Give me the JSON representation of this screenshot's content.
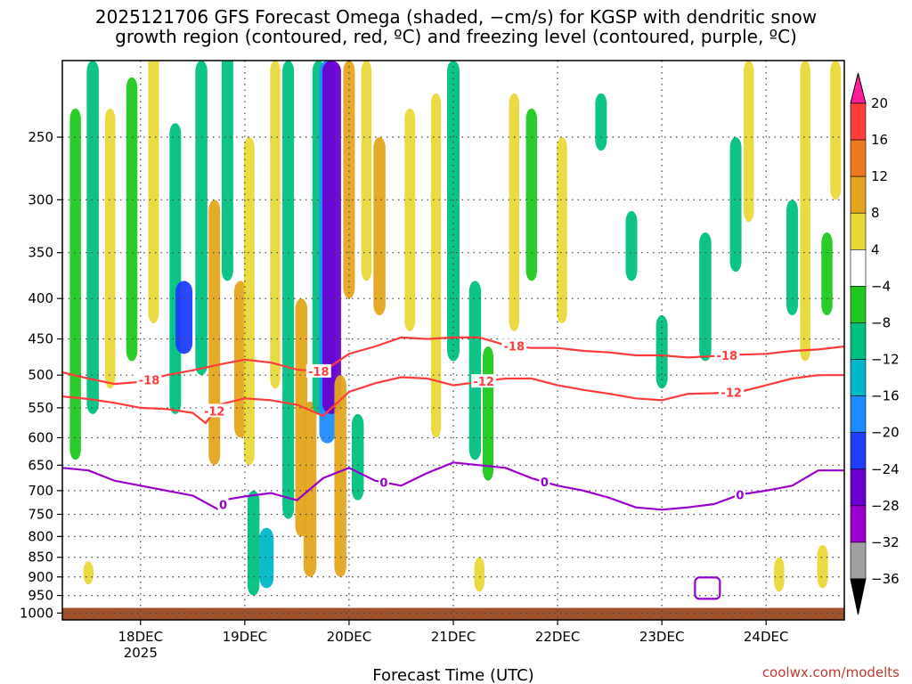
{
  "title": {
    "line1": "2025121706 GFS Forecast Omega (shaded, −cm/s) for KGSP with dendritic snow",
    "line2": "growth region (contoured, red, ºC) and freezing level (contoured, purple, ºC)"
  },
  "credit": "coolwx.com/modelts",
  "colors": {
    "dgz_contour": "#ff3b3b",
    "freezing_contour": "#9900cc",
    "ground": "#a0522d",
    "grid": "#444444"
  },
  "chart_data": {
    "type": "heatmap",
    "xlabel": "Forecast Time (UTC)",
    "ylabel": "",
    "y_axis": {
      "reversed": true,
      "ticks": [
        250,
        300,
        350,
        400,
        450,
        500,
        550,
        600,
        650,
        700,
        750,
        800,
        850,
        900,
        950,
        1000
      ],
      "tick_labels": [
        "250",
        "300",
        "350",
        "400",
        "450",
        "500",
        "550",
        "600",
        "650",
        "700",
        "750",
        "800",
        "850",
        "900",
        "950",
        "1000"
      ]
    },
    "x_axis": {
      "range_hours": [
        0,
        180
      ],
      "ticks": [
        {
          "hour": 18,
          "label": "18DEC",
          "sub": "2025"
        },
        {
          "hour": 42,
          "label": "19DEC",
          "sub": ""
        },
        {
          "hour": 66,
          "label": "20DEC",
          "sub": ""
        },
        {
          "hour": 90,
          "label": "21DEC",
          "sub": ""
        },
        {
          "hour": 114,
          "label": "22DEC",
          "sub": ""
        },
        {
          "hour": 138,
          "label": "23DEC",
          "sub": ""
        },
        {
          "hour": 162,
          "label": "24DEC",
          "sub": ""
        }
      ]
    },
    "grid": true,
    "colorbar": {
      "labels": [
        "20",
        "16",
        "12",
        "8",
        "4",
        "−4",
        "−8",
        "−12",
        "−16",
        "−20",
        "−24",
        "−28",
        "−32",
        "−36"
      ],
      "colors": [
        "#ff1f9a",
        "#ff3d3d",
        "#ee7a1e",
        "#e3a51e",
        "#e9d83a",
        "#ffffff",
        "#1fc81f",
        "#00c080",
        "#00b8c8",
        "#1e8cff",
        "#1f3cff",
        "#6a00d0",
        "#9a00cc",
        "#a0a0a0",
        "#000000"
      ]
    },
    "series": [
      {
        "name": "-18",
        "color": "#ff3b3b",
        "x": [
          0,
          6,
          12,
          18,
          24,
          30,
          36,
          42,
          48,
          54,
          60,
          66,
          72,
          78,
          84,
          90,
          96,
          102,
          108,
          114,
          120,
          126,
          132,
          138,
          144,
          150,
          156,
          162,
          168,
          174,
          180
        ],
        "y": [
          496,
          505,
          513,
          510,
          500,
          493,
          485,
          478,
          482,
          492,
          495,
          470,
          460,
          448,
          450,
          448,
          448,
          458,
          462,
          462,
          466,
          468,
          472,
          472,
          475,
          473,
          471,
          470,
          466,
          464,
          460
        ],
        "labels": [
          {
            "hour": 20,
            "text": "-18"
          },
          {
            "hour": 59,
            "text": "-18"
          },
          {
            "hour": 104,
            "text": "-18"
          },
          {
            "hour": 153,
            "text": "-18"
          }
        ]
      },
      {
        "name": "-12",
        "color": "#ff3b3b",
        "x": [
          0,
          6,
          12,
          18,
          24,
          30,
          33,
          36,
          42,
          48,
          54,
          60,
          66,
          72,
          78,
          84,
          90,
          96,
          102,
          108,
          114,
          120,
          126,
          132,
          138,
          144,
          150,
          156,
          162,
          168,
          174,
          180
        ],
        "y": [
          532,
          536,
          542,
          550,
          552,
          558,
          575,
          545,
          535,
          538,
          545,
          563,
          525,
          512,
          503,
          505,
          515,
          510,
          505,
          505,
          515,
          522,
          528,
          535,
          538,
          528,
          527,
          525,
          515,
          505,
          500,
          500
        ],
        "labels": [
          {
            "hour": 35,
            "text": "-12"
          },
          {
            "hour": 97,
            "text": "-12"
          },
          {
            "hour": 154,
            "text": "-12"
          }
        ]
      },
      {
        "name": "0",
        "color": "#9900cc",
        "x": [
          0,
          6,
          12,
          18,
          24,
          30,
          36,
          38,
          42,
          48,
          54,
          60,
          66,
          72,
          78,
          84,
          90,
          96,
          102,
          108,
          114,
          120,
          126,
          132,
          138,
          144,
          150,
          156,
          162,
          168,
          174,
          180
        ],
        "y": [
          655,
          660,
          680,
          690,
          700,
          710,
          740,
          718,
          712,
          705,
          720,
          675,
          655,
          680,
          690,
          665,
          645,
          650,
          655,
          675,
          690,
          700,
          715,
          735,
          740,
          735,
          728,
          708,
          700,
          690,
          660,
          660
        ],
        "labels": [
          {
            "hour": 37,
            "text": "0"
          },
          {
            "hour": 74,
            "text": "0"
          },
          {
            "hour": 111,
            "text": "0"
          },
          {
            "hour": 156,
            "text": "0"
          }
        ]
      }
    ],
    "annotations": [
      {
        "type": "closed-contour",
        "label": "0",
        "hour": 148.5,
        "pressure": 930,
        "color": "#9900cc"
      },
      {
        "type": "ground",
        "pressure": 985,
        "color": "#a0522d"
      }
    ],
    "shading_blobs": [
      {
        "hour": 3,
        "p_top": 230,
        "p_bot": 640,
        "value": -7
      },
      {
        "hour": 7,
        "p_top": 200,
        "p_bot": 560,
        "value": -9
      },
      {
        "hour": 11,
        "p_top": 230,
        "p_bot": 520,
        "value": 5
      },
      {
        "hour": 16,
        "p_top": 210,
        "p_bot": 480,
        "value": -7
      },
      {
        "hour": 21,
        "p_top": 180,
        "p_bot": 430,
        "value": 6
      },
      {
        "hour": 26,
        "p_top": 240,
        "p_bot": 560,
        "value": -8
      },
      {
        "hour": 28,
        "p_top": 380,
        "p_bot": 470,
        "value": -20
      },
      {
        "hour": 32,
        "p_top": 200,
        "p_bot": 500,
        "value": -9
      },
      {
        "hour": 35,
        "p_top": 300,
        "p_bot": 650,
        "value": 8
      },
      {
        "hour": 38,
        "p_top": 180,
        "p_bot": 380,
        "value": -8
      },
      {
        "hour": 41,
        "p_top": 380,
        "p_bot": 600,
        "value": 10
      },
      {
        "hour": 43,
        "p_top": 250,
        "p_bot": 650,
        "value": 6
      },
      {
        "hour": 44,
        "p_top": 700,
        "p_bot": 950,
        "value": -9
      },
      {
        "hour": 47,
        "p_top": 780,
        "p_bot": 930,
        "value": -14
      },
      {
        "hour": 49,
        "p_top": 200,
        "p_bot": 520,
        "value": 5
      },
      {
        "hour": 52,
        "p_top": 200,
        "p_bot": 760,
        "value": -8
      },
      {
        "hour": 55,
        "p_top": 400,
        "p_bot": 800,
        "value": 9
      },
      {
        "hour": 57,
        "p_top": 540,
        "p_bot": 900,
        "value": 11
      },
      {
        "hour": 59,
        "p_top": 200,
        "p_bot": 560,
        "value": -10
      },
      {
        "hour": 61,
        "p_top": 200,
        "p_bot": 610,
        "value": -18
      },
      {
        "hour": 62,
        "p_top": 200,
        "p_bot": 560,
        "value": -24
      },
      {
        "hour": 64,
        "p_top": 500,
        "p_bot": 900,
        "value": 9
      },
      {
        "hour": 66,
        "p_top": 200,
        "p_bot": 400,
        "value": 8
      },
      {
        "hour": 68,
        "p_top": 560,
        "p_bot": 720,
        "value": -9
      },
      {
        "hour": 70,
        "p_top": 200,
        "p_bot": 380,
        "value": 5
      },
      {
        "hour": 73,
        "p_top": 250,
        "p_bot": 420,
        "value": 9
      },
      {
        "hour": 80,
        "p_top": 230,
        "p_bot": 440,
        "value": 6
      },
      {
        "hour": 86,
        "p_top": 220,
        "p_bot": 600,
        "value": 5
      },
      {
        "hour": 90,
        "p_top": 200,
        "p_bot": 480,
        "value": -10
      },
      {
        "hour": 95,
        "p_top": 380,
        "p_bot": 640,
        "value": -9
      },
      {
        "hour": 98,
        "p_top": 460,
        "p_bot": 680,
        "value": -6
      },
      {
        "hour": 104,
        "p_top": 220,
        "p_bot": 440,
        "value": 5
      },
      {
        "hour": 108,
        "p_top": 230,
        "p_bot": 380,
        "value": -7
      },
      {
        "hour": 115,
        "p_top": 250,
        "p_bot": 430,
        "value": 5
      },
      {
        "hour": 124,
        "p_top": 220,
        "p_bot": 260,
        "value": -8
      },
      {
        "hour": 131,
        "p_top": 310,
        "p_bot": 380,
        "value": -8
      },
      {
        "hour": 138,
        "p_top": 420,
        "p_bot": 520,
        "value": -8
      },
      {
        "hour": 148,
        "p_top": 330,
        "p_bot": 480,
        "value": -9
      },
      {
        "hour": 155,
        "p_top": 250,
        "p_bot": 370,
        "value": -8
      },
      {
        "hour": 158,
        "p_top": 200,
        "p_bot": 320,
        "value": 5
      },
      {
        "hour": 168,
        "p_top": 300,
        "p_bot": 420,
        "value": -8
      },
      {
        "hour": 171,
        "p_top": 200,
        "p_bot": 480,
        "value": 5
      },
      {
        "hour": 176,
        "p_top": 330,
        "p_bot": 420,
        "value": -7
      },
      {
        "hour": 178,
        "p_top": 200,
        "p_bot": 300,
        "value": 6
      },
      {
        "hour": 165,
        "p_top": 850,
        "p_bot": 940,
        "value": 5
      },
      {
        "hour": 175,
        "p_top": 820,
        "p_bot": 930,
        "value": 6
      },
      {
        "hour": 96,
        "p_top": 850,
        "p_bot": 940,
        "value": 5
      },
      {
        "hour": 6,
        "p_top": 860,
        "p_bot": 920,
        "value": 5
      }
    ]
  }
}
